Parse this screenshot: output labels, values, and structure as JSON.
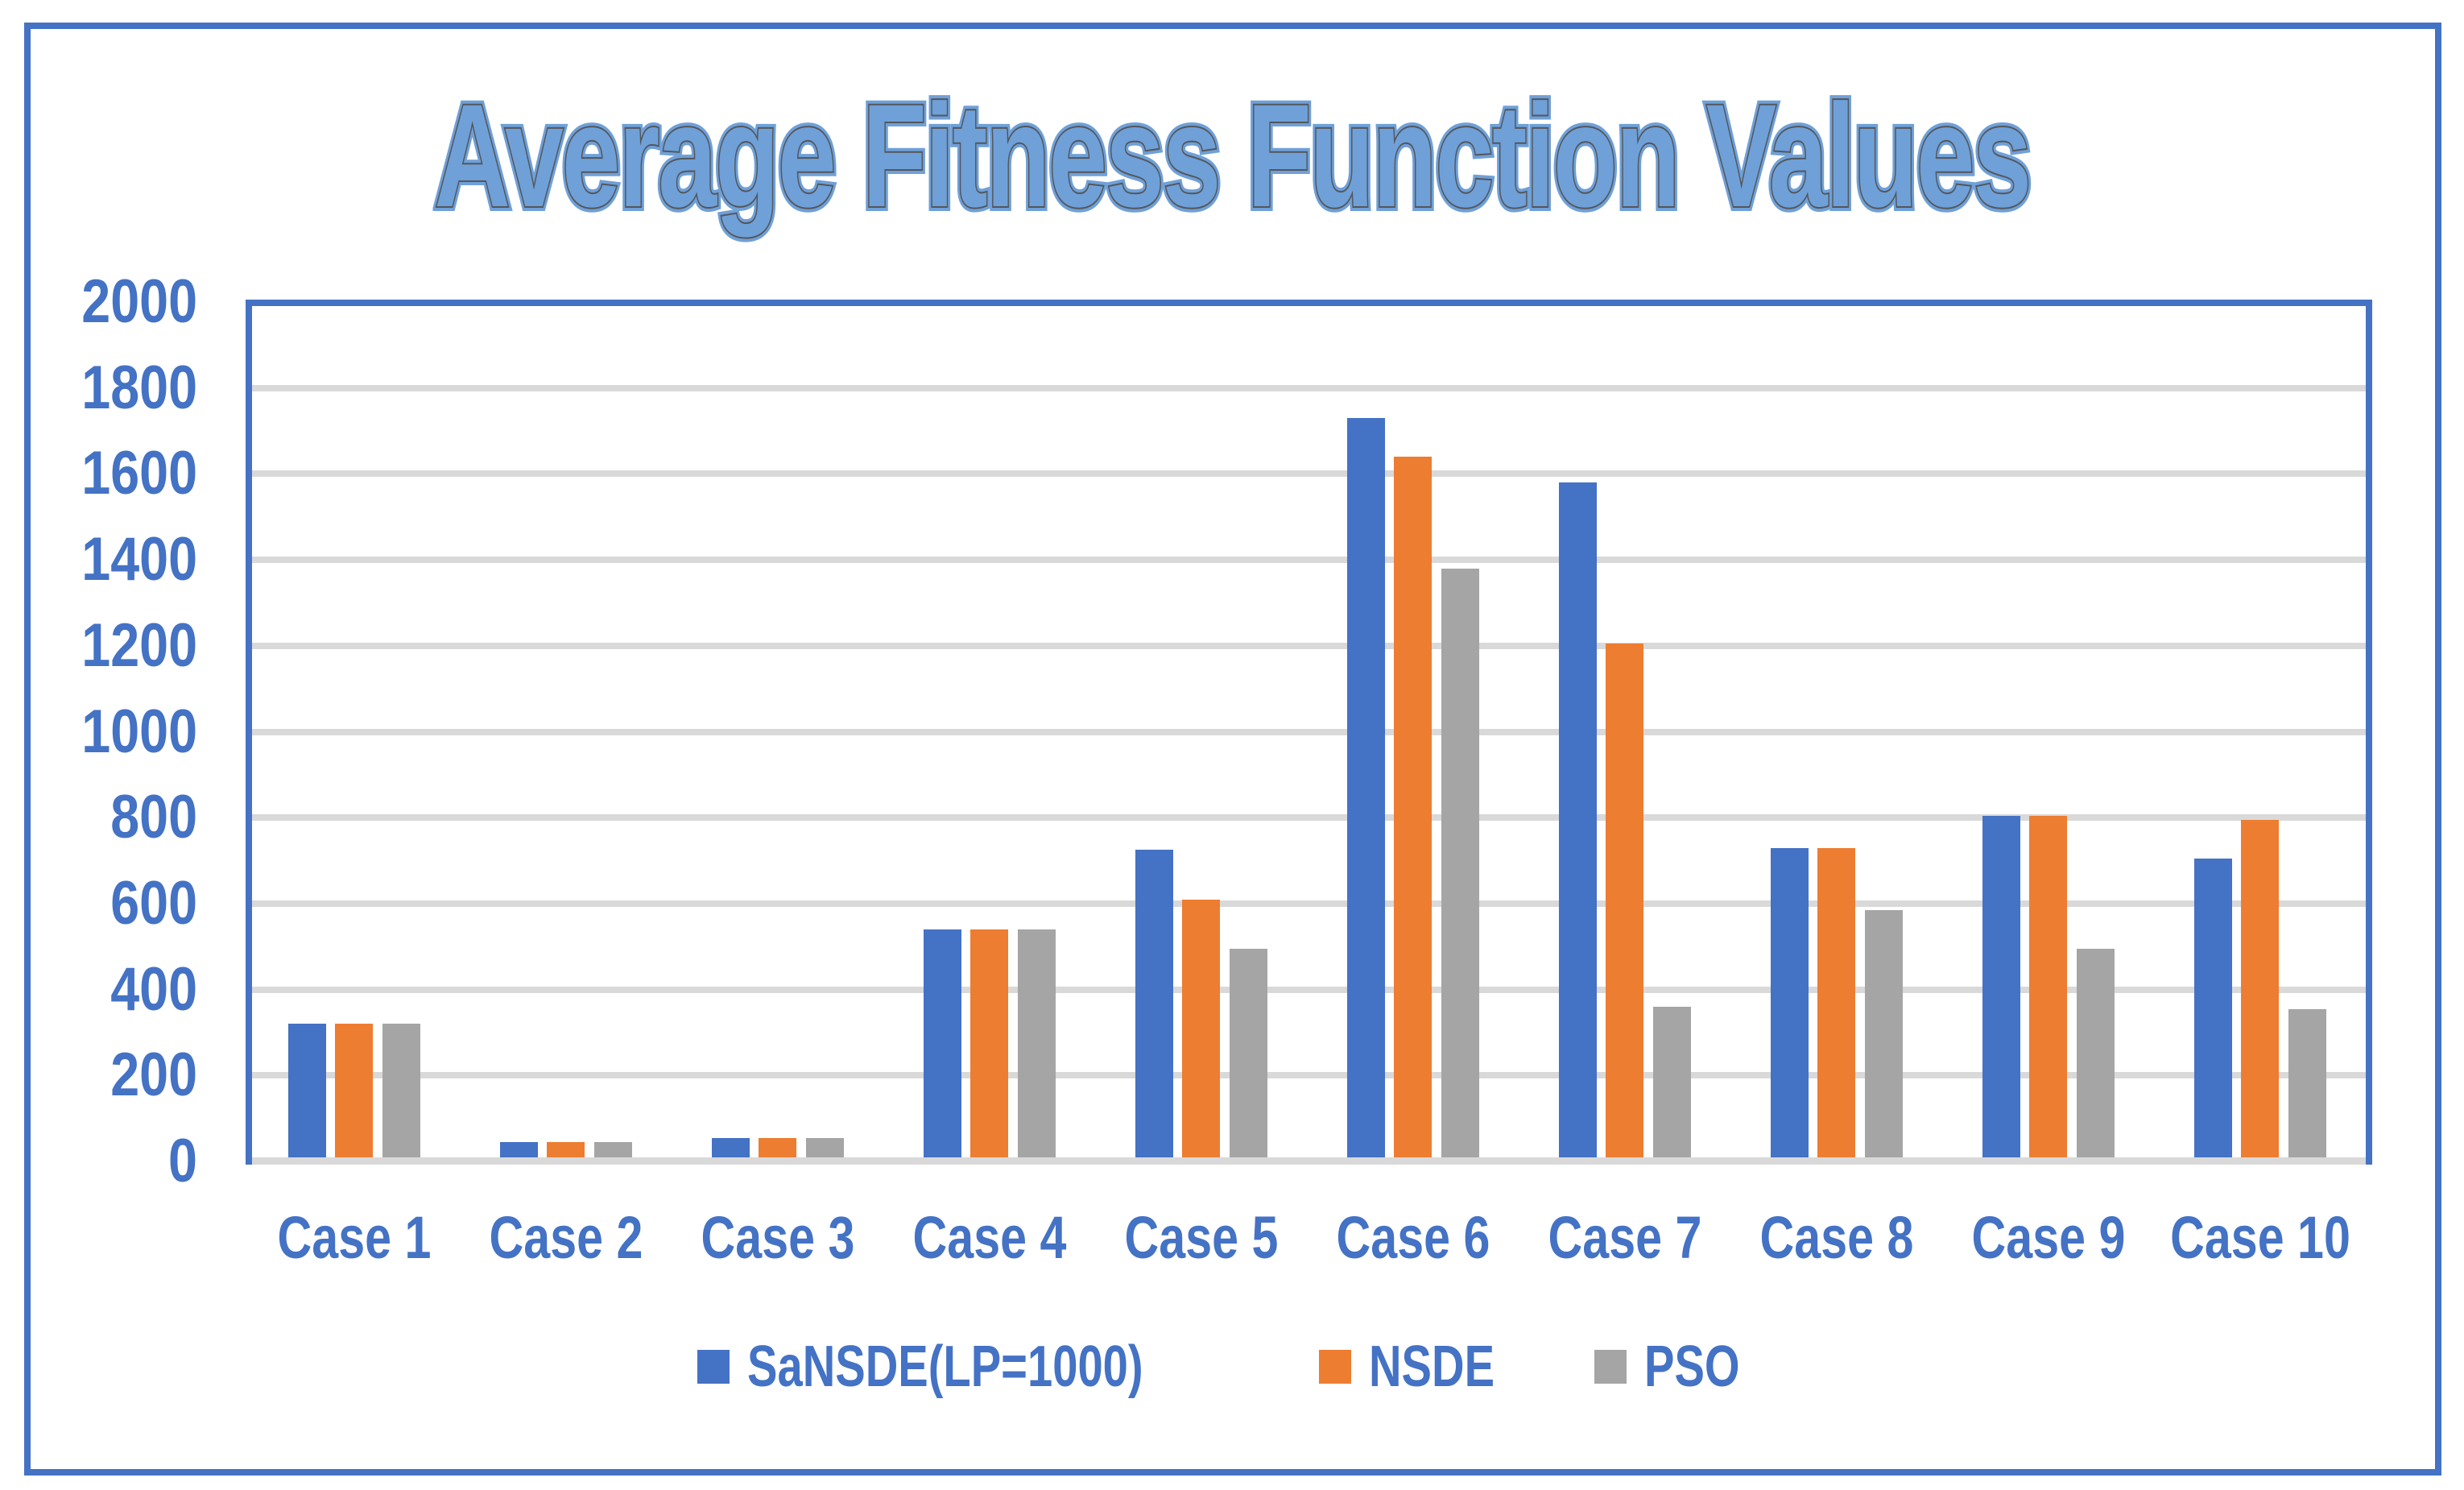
{
  "title": "Average Fitness Function Values",
  "colors": {
    "series_blue": "#4472C4",
    "series_orange": "#ED7D31",
    "series_gray": "#A5A5A5",
    "gridline": "#D9D9D9",
    "axis_text": "#4472C4",
    "border": "#4472C4",
    "title_fill": "#6FA0D8",
    "title_outline": "#54565A"
  },
  "chart_data": {
    "type": "bar",
    "title": "Average Fitness Function Values",
    "categories": [
      "Case 1",
      "Case 2",
      "Case 3",
      "Case 4",
      "Case 5",
      "Case 6",
      "Case 7",
      "Case 8",
      "Case 9",
      "Case 10"
    ],
    "series": [
      {
        "name": "SaNSDE(LP=1000)",
        "color": "#4472C4",
        "values": [
          320,
          45,
          55,
          540,
          725,
          1730,
          1580,
          730,
          805,
          705
        ]
      },
      {
        "name": "NSDE",
        "color": "#ED7D31",
        "values": [
          320,
          45,
          55,
          540,
          610,
          1640,
          1205,
          730,
          805,
          795
        ]
      },
      {
        "name": "PSO",
        "color": "#A5A5A5",
        "values": [
          320,
          45,
          55,
          540,
          495,
          1380,
          360,
          585,
          495,
          355
        ]
      }
    ],
    "xlabel": "",
    "ylabel": "",
    "ylim": [
      0,
      2000
    ],
    "ytick_step": 200,
    "ytick_labels": [
      "0",
      "200",
      "400",
      "600",
      "800",
      "1000",
      "1200",
      "1400",
      "1600",
      "1800",
      "2000"
    ],
    "grid": true,
    "legend_position": "bottom"
  }
}
